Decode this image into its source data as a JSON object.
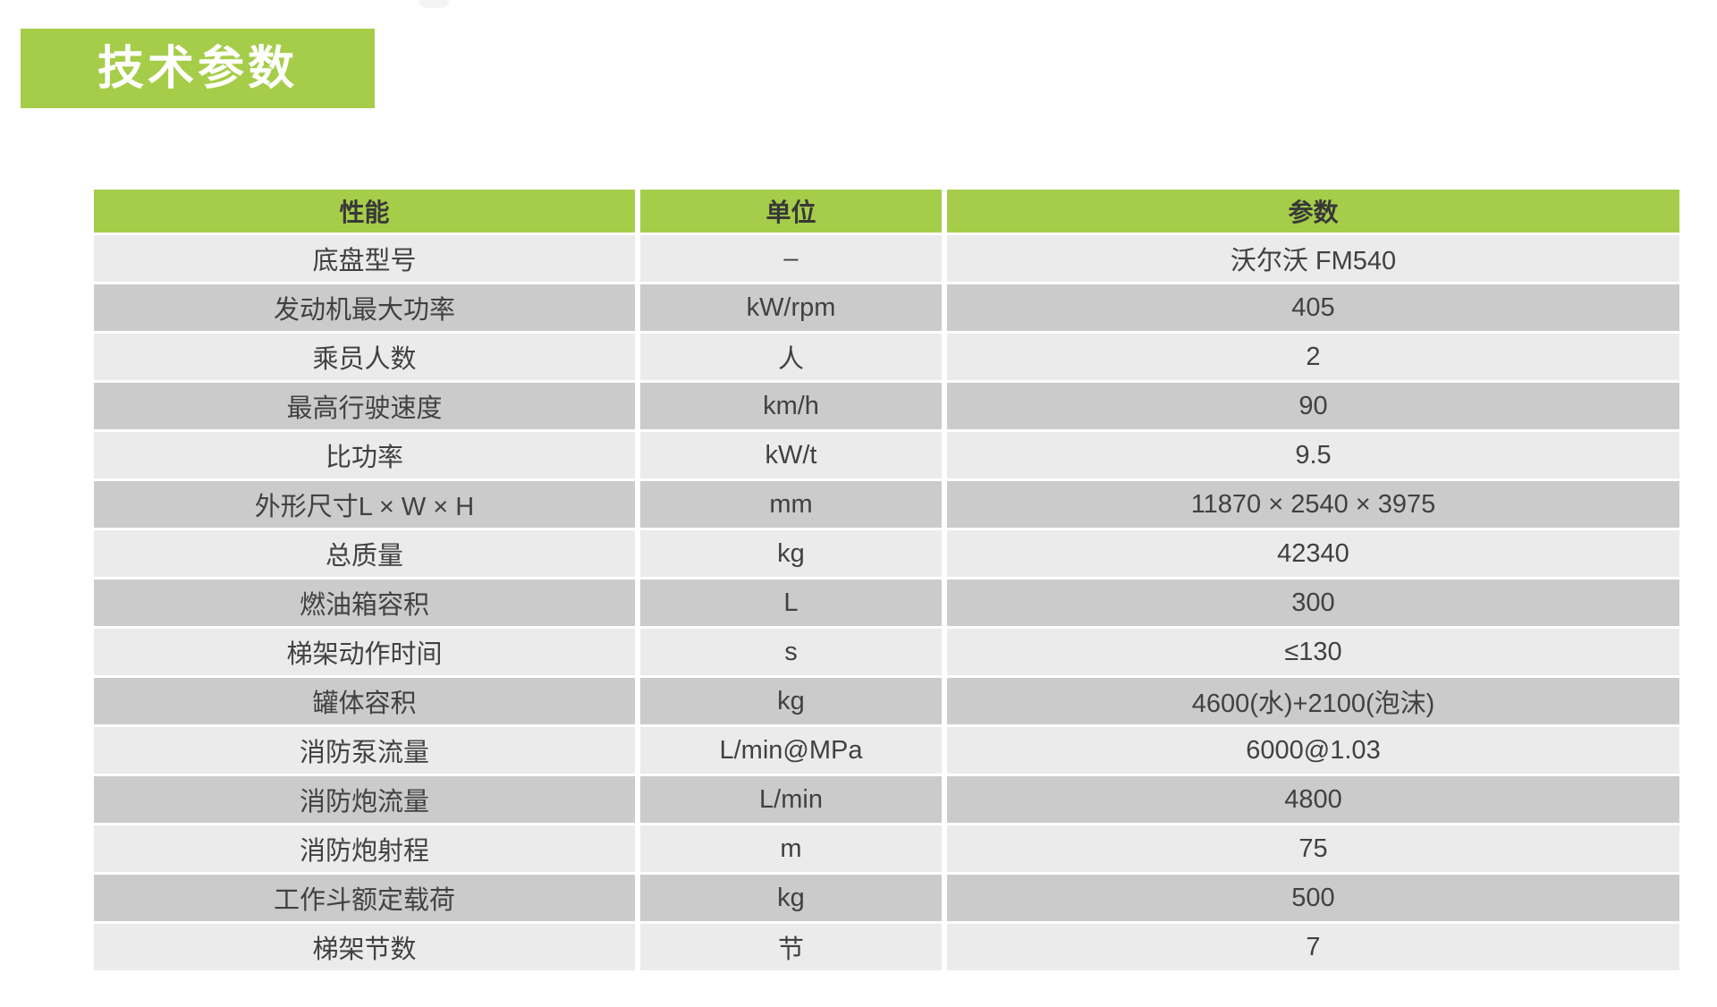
{
  "page": {
    "title_banner": {
      "label": "技术参数",
      "bg_color": "#a5cd4a",
      "text_color": "#ffffff"
    }
  },
  "table": {
    "columns": [
      "性能",
      "单位",
      "参数"
    ],
    "header_bg": "#a5cd4a",
    "row_colors_alternating": [
      "#ebebeb",
      "#cbcbcb"
    ],
    "rows": [
      {
        "property": "底盘型号",
        "unit": "–",
        "value": "沃尔沃 FM540"
      },
      {
        "property": "发动机最大功率",
        "unit": "kW/rpm",
        "value": "405"
      },
      {
        "property": "乘员人数",
        "unit": "人",
        "value": "2"
      },
      {
        "property": "最高行驶速度",
        "unit": "km/h",
        "value": "90"
      },
      {
        "property": "比功率",
        "unit": "kW/t",
        "value": "9.5"
      },
      {
        "property": "外形尺寸L × W × H",
        "unit": "mm",
        "value": "11870 × 2540 × 3975"
      },
      {
        "property": "总质量",
        "unit": "kg",
        "value": "42340"
      },
      {
        "property": "燃油箱容积",
        "unit": "L",
        "value": "300"
      },
      {
        "property": "梯架动作时间",
        "unit": "s",
        "value": "≤130"
      },
      {
        "property": "罐体容积",
        "unit": "kg",
        "value": "4600(水)+2100(泡沫)"
      },
      {
        "property": "消防泵流量",
        "unit": "L/min@MPa",
        "value": "6000@1.03"
      },
      {
        "property": "消防炮流量",
        "unit": "L/min",
        "value": "4800"
      },
      {
        "property": "消防炮射程",
        "unit": "m",
        "value": "75"
      },
      {
        "property": "工作斗额定载荷",
        "unit": "kg",
        "value": "500"
      },
      {
        "property": "梯架节数",
        "unit": "节",
        "value": "7"
      }
    ]
  }
}
